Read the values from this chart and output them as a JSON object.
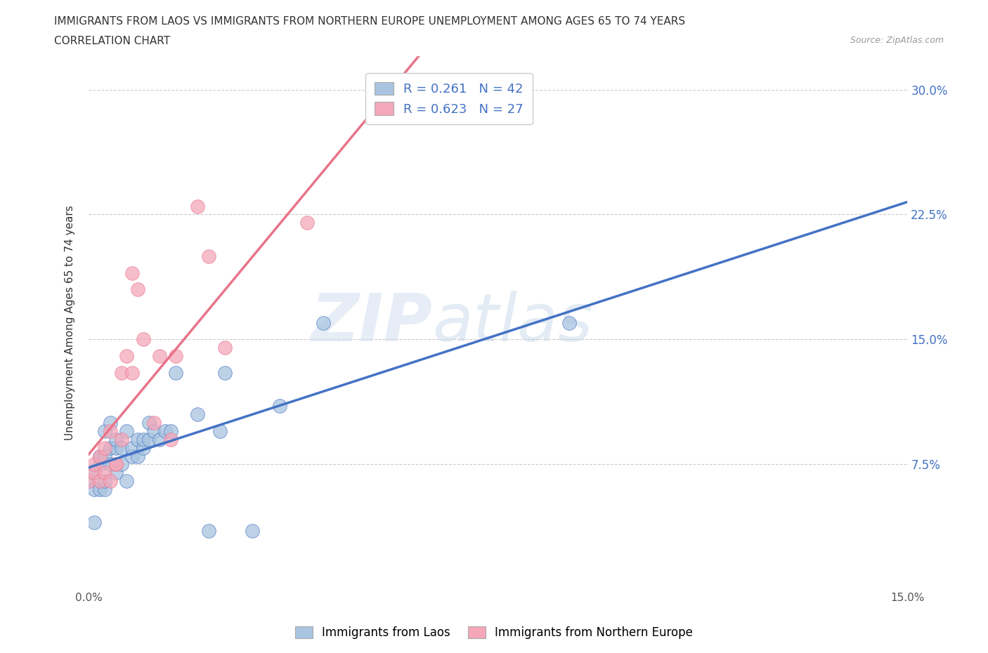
{
  "title_line1": "IMMIGRANTS FROM LAOS VS IMMIGRANTS FROM NORTHERN EUROPE UNEMPLOYMENT AMONG AGES 65 TO 74 YEARS",
  "title_line2": "CORRELATION CHART",
  "source_text": "Source: ZipAtlas.com",
  "ylabel": "Unemployment Among Ages 65 to 74 years",
  "watermark_zip": "ZIP",
  "watermark_atlas": "atlas",
  "legend_label1": "Immigrants from Laos",
  "legend_label2": "Immigrants from Northern Europe",
  "r1": 0.261,
  "n1": 42,
  "r2": 0.623,
  "n2": 27,
  "color_laos": "#a8c4e0",
  "color_ne": "#f4a7b9",
  "color_laos_line": "#4472c4",
  "color_ne_line": "#e8748a",
  "background_color": "#ffffff",
  "xlim": [
    0.0,
    0.15
  ],
  "ylim": [
    0.0,
    0.32
  ],
  "ytick_positions": [
    0.075,
    0.15,
    0.225,
    0.3
  ],
  "ytick_labels": [
    "7.5%",
    "15.0%",
    "22.5%",
    "30.0%"
  ],
  "laos_x": [
    0.0,
    0.001,
    0.001,
    0.001,
    0.002,
    0.002,
    0.002,
    0.003,
    0.003,
    0.003,
    0.003,
    0.004,
    0.004,
    0.004,
    0.005,
    0.005,
    0.005,
    0.006,
    0.006,
    0.007,
    0.007,
    0.008,
    0.008,
    0.009,
    0.009,
    0.01,
    0.01,
    0.011,
    0.011,
    0.012,
    0.013,
    0.014,
    0.015,
    0.016,
    0.02,
    0.022,
    0.024,
    0.025,
    0.03,
    0.035,
    0.043,
    0.088
  ],
  "laos_y": [
    0.065,
    0.04,
    0.06,
    0.07,
    0.06,
    0.075,
    0.08,
    0.06,
    0.065,
    0.08,
    0.095,
    0.075,
    0.085,
    0.1,
    0.07,
    0.085,
    0.09,
    0.075,
    0.085,
    0.065,
    0.095,
    0.08,
    0.085,
    0.08,
    0.09,
    0.085,
    0.09,
    0.09,
    0.1,
    0.095,
    0.09,
    0.095,
    0.095,
    0.13,
    0.105,
    0.035,
    0.095,
    0.13,
    0.035,
    0.11,
    0.16,
    0.16
  ],
  "ne_x": [
    0.0,
    0.001,
    0.001,
    0.002,
    0.002,
    0.003,
    0.003,
    0.004,
    0.004,
    0.005,
    0.005,
    0.006,
    0.006,
    0.007,
    0.008,
    0.008,
    0.009,
    0.01,
    0.012,
    0.013,
    0.015,
    0.016,
    0.02,
    0.022,
    0.025,
    0.04,
    0.055
  ],
  "ne_y": [
    0.065,
    0.07,
    0.075,
    0.065,
    0.08,
    0.07,
    0.085,
    0.065,
    0.095,
    0.075,
    0.075,
    0.09,
    0.13,
    0.14,
    0.13,
    0.19,
    0.18,
    0.15,
    0.1,
    0.14,
    0.09,
    0.14,
    0.23,
    0.2,
    0.145,
    0.22,
    0.285
  ]
}
